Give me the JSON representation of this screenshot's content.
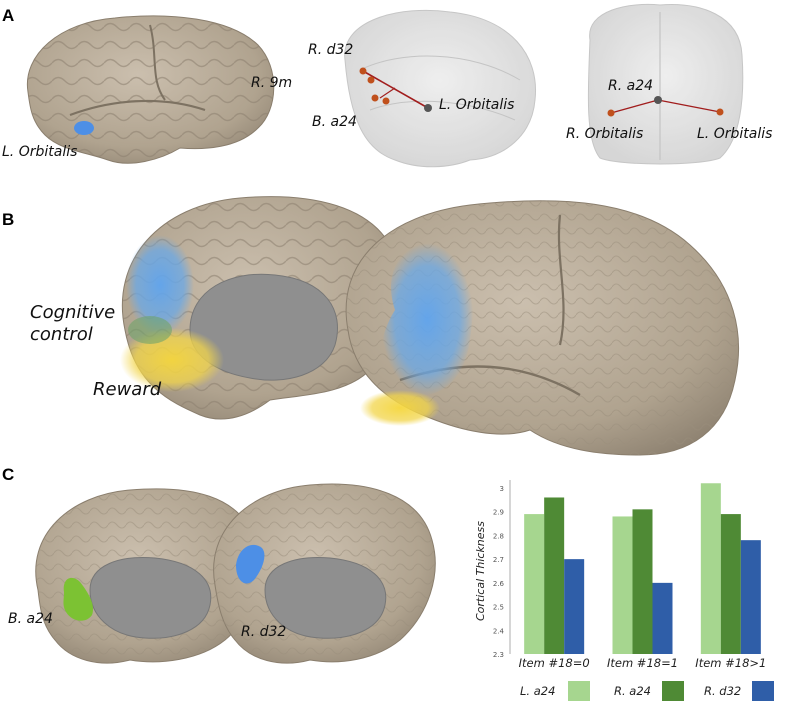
{
  "panels": {
    "a": "A",
    "b": "B",
    "c": "C"
  },
  "panel_a": {
    "lateral": {
      "label_orbitalis": "L. Orbitalis",
      "label_9m": "R. 9m"
    },
    "glass_side": {
      "label_d32": "R. d32",
      "label_a24": "B. a24",
      "label_orbitalis": "L. Orbitalis"
    },
    "glass_front": {
      "label_a24": "R. a24",
      "label_r_orbitalis": "R. Orbitalis",
      "label_l_orbitalis": "L. Orbitalis"
    }
  },
  "panel_b": {
    "label_cognitive": "Cognitive\ncontrol",
    "label_reward": "Reward"
  },
  "panel_c": {
    "label_a24": "B. a24",
    "label_d32": "R. d32"
  },
  "colors": {
    "light_green": "#a6d68f",
    "dark_green": "#4f8a35",
    "blue": "#2f5ea8",
    "brain": "#b4a895",
    "control": "#6aa8e6",
    "reward": "#f2d54b"
  },
  "chart_data": {
    "type": "bar",
    "categories": [
      "Item #18=0",
      "Item #18=1",
      "Item #18>1"
    ],
    "series": [
      {
        "name": "L. a24",
        "values": [
          2.89,
          2.88,
          3.02
        ],
        "color": "#a6d68f"
      },
      {
        "name": "R. a24",
        "values": [
          2.96,
          2.91,
          2.89
        ],
        "color": "#4f8a35"
      },
      {
        "name": "R. d32",
        "values": [
          2.7,
          2.6,
          2.78
        ],
        "color": "#2f5ea8"
      }
    ],
    "ylabel": "Cortical Thickness",
    "ylim": [
      2.3,
      3.0
    ],
    "yticks": [
      "2.3",
      "2.4",
      "2.5",
      "2.6",
      "2.7",
      "2.8",
      "2.9",
      "3"
    ],
    "legend_position": "bottom"
  }
}
